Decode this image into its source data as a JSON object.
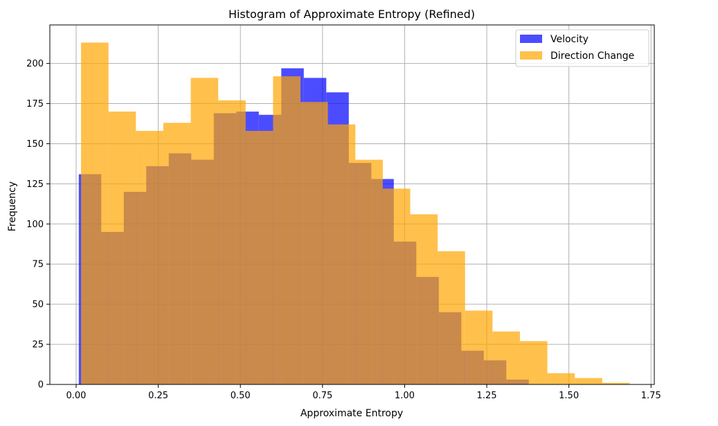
{
  "chart_data": {
    "type": "bar",
    "subtype": "histogram-overlay",
    "title": "Histogram of Approximate Entropy (Refined)",
    "xlabel": "Approximate Entropy",
    "ylabel": "Frequency",
    "xlim": [
      -0.08,
      1.76
    ],
    "ylim": [
      0,
      224
    ],
    "xticks": [
      0.0,
      0.25,
      0.5,
      0.75,
      1.0,
      1.25,
      1.5,
      1.75
    ],
    "xtick_labels": [
      "0.00",
      "0.25",
      "0.50",
      "0.75",
      "1.00",
      "1.25",
      "1.50",
      "1.75"
    ],
    "yticks": [
      0,
      25,
      50,
      75,
      100,
      125,
      150,
      175,
      200
    ],
    "ytick_labels": [
      "0",
      "25",
      "50",
      "75",
      "100",
      "125",
      "150",
      "175",
      "200"
    ],
    "grid": true,
    "legend_position": "upper right",
    "series": [
      {
        "name": "Velocity",
        "color": "#0000ff",
        "alpha": 0.7,
        "bin_edges": [
          0.008,
          0.0765,
          0.145,
          0.2135,
          0.282,
          0.3505,
          0.419,
          0.4875,
          0.556,
          0.6245,
          0.693,
          0.7615,
          0.83,
          0.8985,
          0.967,
          1.0355,
          1.104,
          1.1725,
          1.241,
          1.3095,
          1.378
        ],
        "values": [
          131,
          95,
          120,
          136,
          144,
          140,
          169,
          170,
          168,
          197,
          191,
          182,
          138,
          128,
          89,
          67,
          45,
          21,
          15,
          3
        ]
      },
      {
        "name": "Direction Change",
        "color": "#ffa500",
        "alpha": 0.7,
        "bin_edges": [
          0.015,
          0.0985,
          0.182,
          0.2655,
          0.349,
          0.4325,
          0.516,
          0.5995,
          0.683,
          0.7665,
          0.85,
          0.9335,
          1.017,
          1.1005,
          1.184,
          1.2675,
          1.351,
          1.4345,
          1.518,
          1.6015,
          1.685
        ],
        "values": [
          213,
          170,
          158,
          163,
          191,
          177,
          158,
          192,
          176,
          162,
          140,
          122,
          106,
          83,
          46,
          33,
          27,
          7,
          4,
          1
        ]
      }
    ]
  }
}
